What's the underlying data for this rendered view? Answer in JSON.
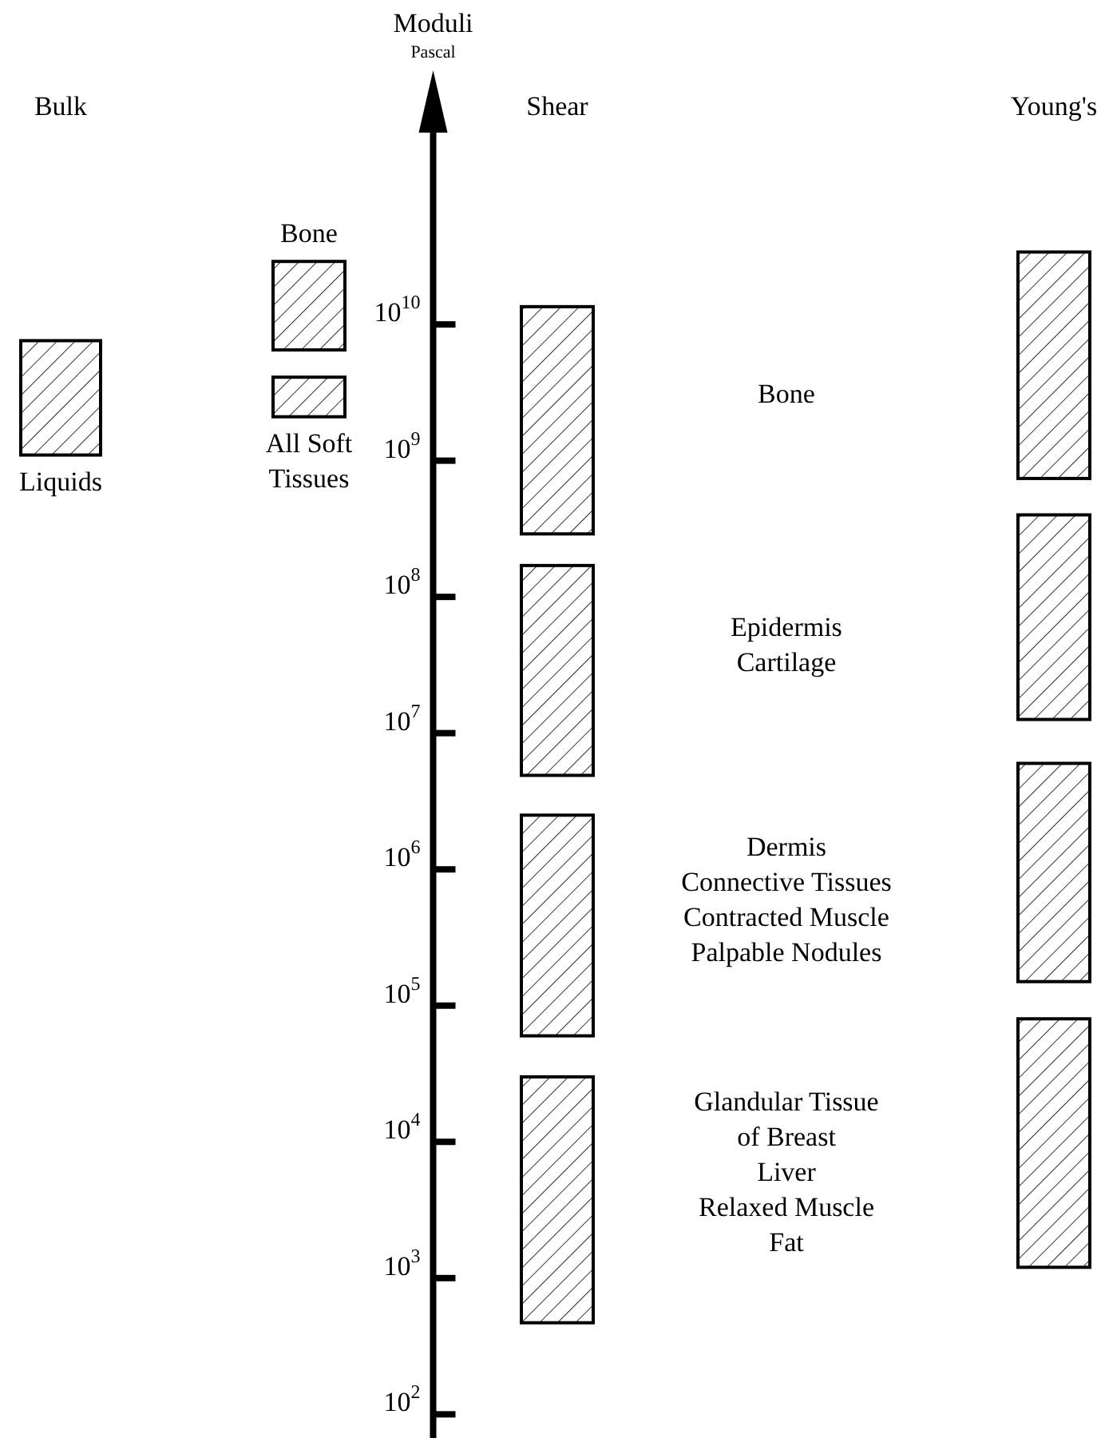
{
  "chart_data": {
    "type": "bar",
    "title": "Moduli",
    "subtitle": "Pascal",
    "categories": [
      "Bulk",
      null,
      "Shear",
      null,
      "Young's"
    ],
    "log": true,
    "ylim": [
      67,
      270000000000
    ],
    "yticks": [
      {
        "value": 100,
        "label": "10$^{2}$"
      },
      {
        "value": 1000,
        "label": "10$^{3}$"
      },
      {
        "value": 10000,
        "label": "10$^{4}$"
      },
      {
        "value": 100000,
        "label": "10$^{5}$"
      },
      {
        "value": 1000000,
        "label": "10$^{6}$"
      },
      {
        "value": 10000000,
        "label": "10$^{7}$"
      },
      {
        "value": 100000000,
        "label": "10$^{8}$"
      },
      {
        "value": 1000000000,
        "label": "10$^{9}$"
      },
      {
        "value": 10000000000,
        "label": "10$^{10}$"
      }
    ],
    "series": [
      {
        "name": "Liquids",
        "color": "#000000",
        "base": [
          1100000000,
          null,
          null,
          null,
          null
        ],
        "values": [
          6500000000,
          null,
          null,
          null,
          null
        ]
      },
      {
        "name": "Bone",
        "color": "#000000",
        "base": [
          null,
          6500000000,
          null,
          null,
          null
        ],
        "values": [
          null,
          22500000000,
          null,
          null,
          null
        ]
      },
      {
        "name": "All Soft\nTissues",
        "color": "#000000",
        "base": [
          null,
          2100000000,
          null,
          null,
          null
        ],
        "values": [
          null,
          2000000000,
          null,
          null,
          null
        ]
      },
      {
        "color": "#000000",
        "base": [
          null,
          null,
          290000000,
          null,
          740000000
        ],
        "values": [
          null,
          null,
          13210000000,
          null,
          33260000000
        ]
      },
      {
        "color": "#000000",
        "base": [
          null,
          null,
          4900000,
          null,
          12600000
        ],
        "values": [
          null,
          null,
          165100000,
          null,
          387400000
        ]
      },
      {
        "color": "#000000",
        "base": [
          null,
          null,
          60000,
          null,
          150000
        ],
        "values": [
          null,
          null,
          2440000,
          null,
          5850000
        ]
      },
      {
        "color": "#000000",
        "base": [
          null,
          null,
          470,
          null,
          1200
        ],
        "values": [
          null,
          null,
          29530,
          null,
          78800
        ]
      }
    ],
    "annotations": [
      "Bone",
      "Epidermis\nCartilage",
      "Dermis\nConnective Tissues\nContracted Muscle\nPalpable Nodules",
      "Glandular Tissue\nof Breast\nLiver\nRelaxed Muscle\nFat"
    ]
  }
}
